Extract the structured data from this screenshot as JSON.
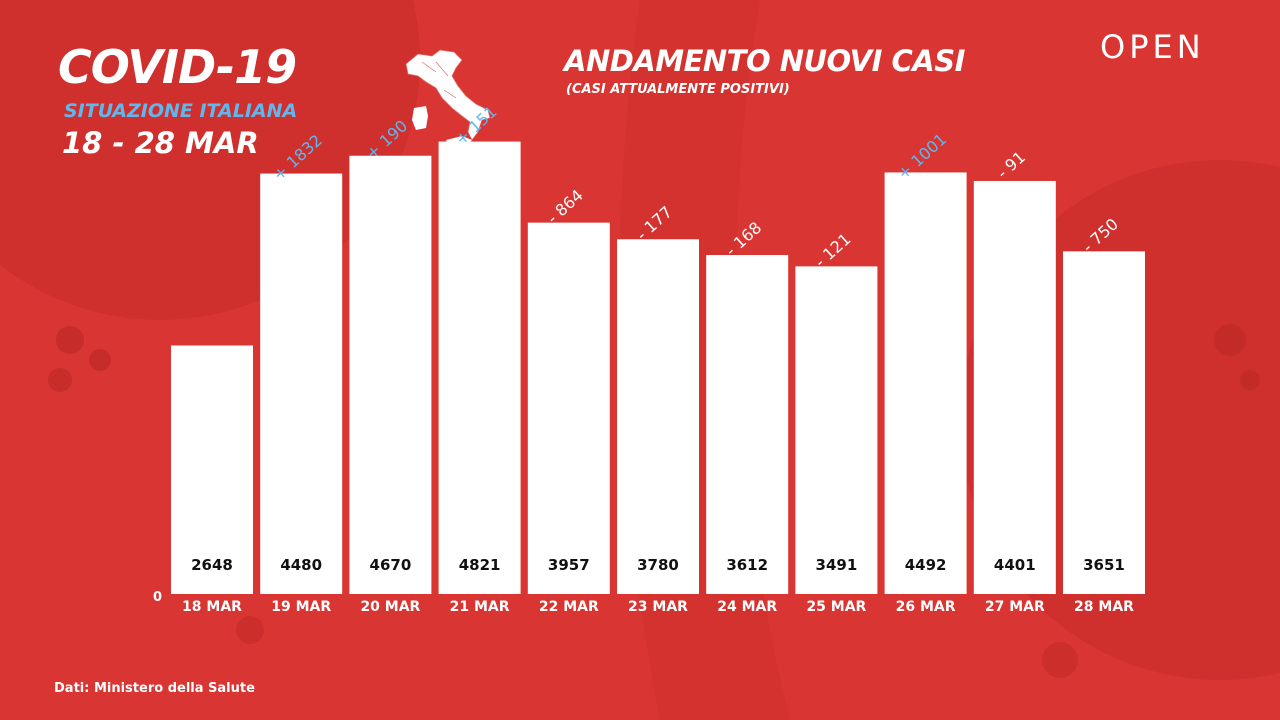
{
  "header": {
    "title": "COVID-19",
    "subtitle": "SITUAZIONE ITALIANA",
    "date_range": "18 - 28 MAR",
    "logo": "OPEN",
    "map_icon": "italy-map-icon"
  },
  "chart_data": {
    "type": "bar",
    "title": "ANDAMENTO NUOVI CASI",
    "subtitle": "(CASI ATTUALMENTE POSITIVI)",
    "xlabel": "",
    "ylabel": "",
    "ylim": [
      0,
      5200
    ],
    "y_tick_label": "0",
    "grid": false,
    "categories": [
      "18 MAR",
      "19 MAR",
      "20 MAR",
      "21 MAR",
      "22 MAR",
      "23 MAR",
      "24 MAR",
      "25 MAR",
      "26 MAR",
      "27 MAR",
      "28 MAR"
    ],
    "values": [
      2648,
      4480,
      4670,
      4821,
      3957,
      3780,
      3612,
      3491,
      4492,
      4401,
      3651
    ],
    "changes": [
      "",
      "+ 1832",
      "+ 190",
      "+ 151",
      "- 864",
      "- 177",
      "- 168",
      "- 121",
      "+ 1001",
      "- 91",
      "- 750"
    ]
  },
  "colors": {
    "background": "#d93532",
    "bar": "#ffffff",
    "increase": "#5fb7ee",
    "decrease": "#ffffff",
    "value_text": "#111111"
  },
  "footer": {
    "source": "Dati: Ministero della Salute"
  }
}
